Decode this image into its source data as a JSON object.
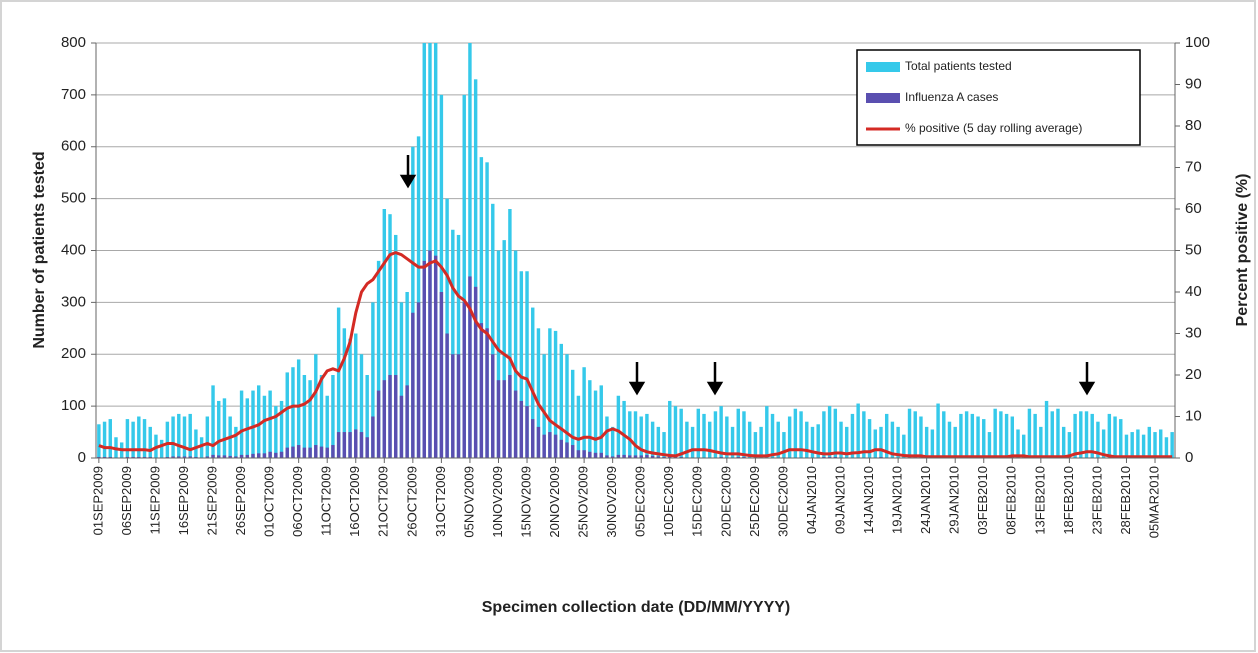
{
  "chart_data": {
    "type": "bar",
    "x_label": "Specimen collection date (DD/MM/YYYY)",
    "y_label": "Number of patients tested",
    "y2_label": "Percent positive (%)",
    "categories": [
      "01SEP2009",
      null,
      null,
      null,
      null,
      "06SEP2009",
      null,
      null,
      null,
      null,
      "11SEP2009",
      null,
      null,
      null,
      null,
      "16SEP2009",
      null,
      null,
      null,
      null,
      "21SEP2009",
      null,
      null,
      null,
      null,
      "26SEP2009",
      null,
      null,
      null,
      null,
      "01OCT2009",
      null,
      null,
      null,
      null,
      "06OCT2009",
      null,
      null,
      null,
      null,
      "11OCT2009",
      null,
      null,
      null,
      null,
      "16OCT2009",
      null,
      null,
      null,
      null,
      "21OCT2009",
      null,
      null,
      null,
      null,
      "26OCT2009",
      null,
      null,
      null,
      null,
      "31OCT2009",
      null,
      null,
      null,
      null,
      "05NOV2009",
      null,
      null,
      null,
      null,
      "10NOV2009",
      null,
      null,
      null,
      null,
      "15NOV2009",
      null,
      null,
      null,
      null,
      "20NOV2009",
      null,
      null,
      null,
      null,
      "25NOV2009",
      null,
      null,
      null,
      null,
      "30NOV2009",
      null,
      null,
      null,
      null,
      "05DEC2009",
      null,
      null,
      null,
      null,
      "10DEC2009",
      null,
      null,
      null,
      null,
      "15DEC2009",
      null,
      null,
      null,
      null,
      "20DEC2009",
      null,
      null,
      null,
      null,
      "25DEC2009",
      null,
      null,
      null,
      null,
      "30DEC2009",
      null,
      null,
      null,
      null,
      "04JAN2010",
      null,
      null,
      null,
      null,
      "09JAN2010",
      null,
      null,
      null,
      null,
      "14JAN2010",
      null,
      null,
      null,
      null,
      "19JAN2010",
      null,
      null,
      null,
      null,
      "24JAN2010",
      null,
      null,
      null,
      null,
      "29JAN2010",
      null,
      null,
      null,
      null,
      "03FEB2010",
      null,
      null,
      null,
      null,
      "08FEB2010",
      null,
      null,
      null,
      null,
      "13FEB2010",
      null,
      null,
      null,
      null,
      "18FEB2010",
      null,
      null,
      null,
      null,
      "23FEB2010",
      null,
      null,
      null,
      null,
      "28FEB2010",
      null,
      null,
      null,
      null,
      "05MAR2010",
      null,
      null,
      null
    ],
    "series": [
      {
        "name": "Total patients tested",
        "color": "#35c9ea",
        "values": [
          65,
          70,
          75,
          40,
          30,
          75,
          70,
          80,
          75,
          60,
          45,
          35,
          70,
          80,
          85,
          80,
          85,
          55,
          40,
          80,
          140,
          110,
          115,
          80,
          60,
          130,
          115,
          130,
          140,
          120,
          130,
          100,
          110,
          165,
          175,
          190,
          160,
          150,
          200,
          160,
          120,
          160,
          290,
          250,
          230,
          240,
          200,
          160,
          300,
          380,
          480,
          470,
          430,
          300,
          320,
          600,
          620,
          800,
          800,
          800,
          700,
          500,
          440,
          430,
          700,
          800,
          730,
          580,
          570,
          490,
          400,
          420,
          480,
          400,
          360,
          360,
          290,
          250,
          200,
          250,
          245,
          220,
          200,
          170,
          120,
          175,
          150,
          130,
          140,
          80,
          60,
          120,
          110,
          90,
          90,
          80,
          85,
          70,
          60,
          50,
          110,
          100,
          95,
          70,
          60,
          95,
          85,
          70,
          90,
          100,
          80,
          60,
          95,
          90,
          70,
          50,
          60,
          100,
          85,
          70,
          50,
          80,
          95,
          90,
          70,
          60,
          65,
          90,
          100,
          95,
          70,
          60,
          85,
          105,
          90,
          75,
          55,
          60,
          85,
          70,
          60,
          45,
          95,
          90,
          80,
          60,
          55,
          105,
          90,
          70,
          60,
          85,
          90,
          85,
          80,
          75,
          50,
          95,
          90,
          85,
          80,
          55,
          45,
          95,
          85,
          60,
          110,
          90,
          95,
          60,
          50,
          85,
          90,
          90,
          85,
          70,
          55,
          85,
          80,
          75,
          45,
          50,
          55,
          45,
          60,
          50,
          55,
          40,
          50
        ]
      },
      {
        "name": "Influenza A cases",
        "color": "#5a4fb0",
        "values": [
          2,
          2,
          2,
          1,
          1,
          2,
          2,
          2,
          2,
          2,
          1,
          1,
          2,
          3,
          3,
          3,
          3,
          2,
          1,
          3,
          6,
          5,
          5,
          4,
          3,
          6,
          6,
          8,
          9,
          9,
          12,
          10,
          12,
          20,
          22,
          25,
          20,
          20,
          25,
          22,
          20,
          25,
          50,
          50,
          50,
          55,
          50,
          40,
          80,
          130,
          150,
          160,
          160,
          120,
          140,
          280,
          300,
          380,
          400,
          390,
          320,
          240,
          200,
          200,
          300,
          350,
          330,
          260,
          250,
          200,
          150,
          150,
          160,
          130,
          110,
          100,
          75,
          60,
          45,
          50,
          45,
          35,
          30,
          25,
          15,
          15,
          12,
          10,
          10,
          5,
          3,
          6,
          6,
          5,
          5,
          5,
          6,
          4,
          3,
          2,
          4,
          3,
          2,
          1,
          1,
          1,
          1,
          1,
          1,
          2,
          1,
          1,
          2,
          2,
          1,
          1,
          1,
          1,
          1,
          1,
          1,
          1,
          1,
          1,
          1,
          1,
          1,
          2,
          2,
          2,
          1,
          1,
          1,
          1,
          1,
          1,
          1,
          2,
          1,
          1,
          0,
          0,
          1,
          1,
          1,
          0,
          0,
          1,
          1,
          0,
          0,
          1,
          1,
          1,
          1,
          0,
          0,
          1,
          0,
          1,
          1,
          0,
          0,
          1,
          0,
          0,
          1,
          1,
          1,
          0,
          0,
          1,
          1,
          1,
          1,
          1,
          0,
          0,
          0,
          0,
          0,
          0,
          0,
          0,
          0,
          0,
          0,
          0,
          0
        ]
      },
      {
        "name": "% positive (5 day rolling average)",
        "color": "#d42a24",
        "type": "line",
        "axis": "y2",
        "values": [
          3,
          2.5,
          2.5,
          2.2,
          2,
          2,
          2,
          2,
          2,
          1.8,
          2.5,
          3,
          3.5,
          3.5,
          3,
          2.5,
          2,
          2.5,
          3,
          3.5,
          3,
          4,
          4.5,
          5,
          5.5,
          6.5,
          7,
          7.5,
          8,
          9,
          9.5,
          10,
          11,
          12,
          12.5,
          12.5,
          13,
          14,
          16,
          19,
          21,
          21.5,
          21,
          24,
          28,
          35,
          40,
          42,
          43,
          45,
          47,
          49,
          49.5,
          49,
          48,
          47,
          46,
          46,
          47,
          47.5,
          46,
          44,
          41,
          39,
          38,
          36,
          33,
          31,
          30,
          28,
          26,
          25,
          24,
          21,
          19.5,
          19,
          16,
          13,
          11,
          9,
          8,
          7,
          6,
          5,
          4.5,
          5,
          5,
          4.5,
          5,
          6.5,
          7,
          6.5,
          5.5,
          4.5,
          3,
          2,
          1.5,
          1.2,
          1,
          0.8,
          0.6,
          0.5,
          1,
          1.5,
          2,
          2,
          2,
          1.8,
          1.5,
          1.2,
          1,
          1,
          1,
          0.8,
          0.6,
          0.5,
          0.5,
          0.5,
          0.8,
          1,
          1.5,
          2,
          2,
          2,
          1.8,
          1.5,
          1.2,
          1,
          1,
          1.2,
          1.2,
          1,
          1.2,
          1.3,
          1.5,
          1.5,
          2,
          2,
          1.5,
          1,
          0.8,
          0.6,
          0.5,
          0.5,
          0.5,
          0.3,
          0.3,
          0.3,
          0.3,
          0.3,
          0.3,
          0.3,
          0.3,
          0.3,
          0.3,
          0.3,
          0.3,
          0.3,
          0.3,
          0.3,
          0.5,
          0.5,
          0.5,
          0.3,
          0.3,
          0.3,
          0.3,
          0.3,
          0.3,
          0.3,
          0.5,
          1,
          1.2,
          1.5,
          1.5,
          1.2,
          0.8,
          0.5,
          0.3,
          0.3,
          0.3,
          0.3,
          0.3,
          0.3,
          0.3,
          0.3,
          0.3,
          0.3,
          0.3
        ]
      }
    ],
    "ylim": [
      0,
      800
    ],
    "yticks": [
      0,
      100,
      200,
      300,
      400,
      500,
      600,
      700,
      800
    ],
    "y2lim": [
      0,
      100
    ],
    "y2ticks": [
      0,
      10,
      20,
      30,
      40,
      50,
      60,
      70,
      80,
      90,
      100
    ],
    "grid": true,
    "legend": "top-right"
  }
}
